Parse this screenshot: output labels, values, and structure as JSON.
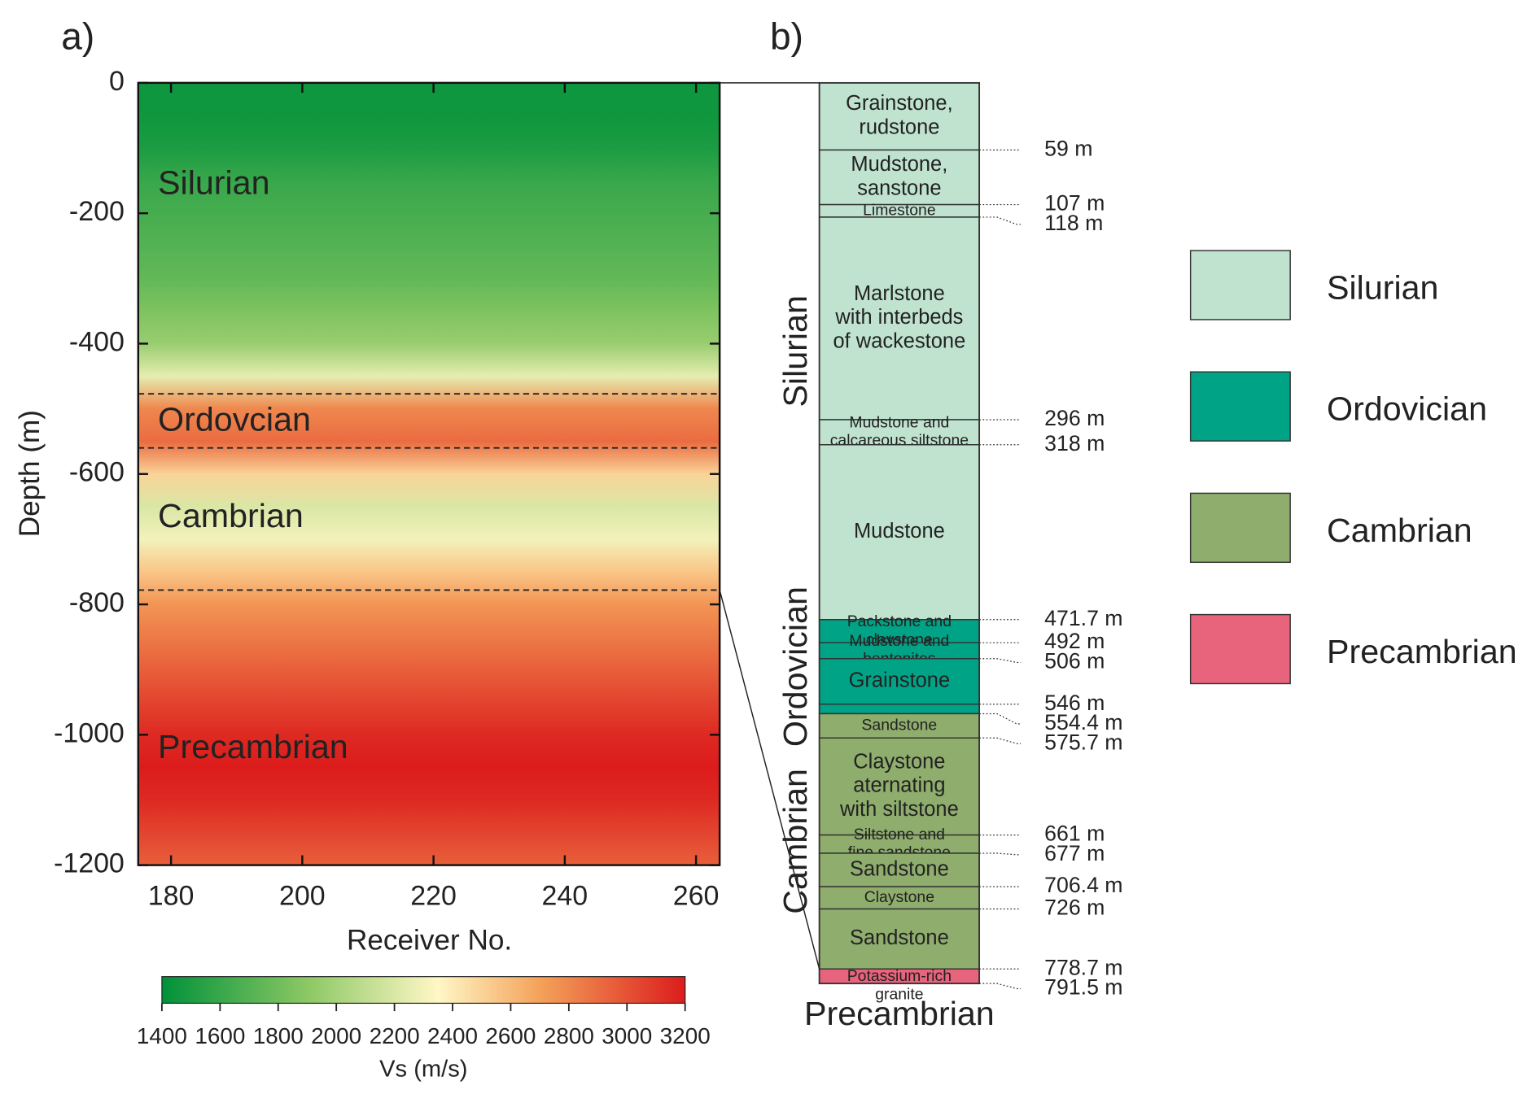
{
  "panel_a": {
    "label": "a)",
    "xlabel": "Receiver No.",
    "ylabel": "Depth (m)",
    "xlim": [
      175,
      263.6
    ],
    "xticks": [
      180,
      200,
      220,
      240,
      260
    ],
    "ylim": [
      0,
      -1200
    ],
    "yticks": [
      0,
      -200,
      -400,
      -600,
      -800,
      -1000,
      -1200
    ],
    "vs_profile": {
      "depth": [
        0,
        -50,
        -100,
        -150,
        -200,
        -250,
        -300,
        -350,
        -400,
        -450,
        -500,
        -550,
        -600,
        -650,
        -700,
        -750,
        -800,
        -850,
        -900,
        -950,
        -1000,
        -1050,
        -1100,
        -1150,
        -1200
      ],
      "vs": [
        1450,
        1450,
        1500,
        1600,
        1650,
        1700,
        1750,
        1850,
        1950,
        2250,
        2800,
        2900,
        2500,
        2200,
        2300,
        2550,
        2750,
        2850,
        2950,
        3050,
        3150,
        3200,
        3150,
        3050,
        2950
      ]
    },
    "formations": [
      {
        "name": "Silurian",
        "depth": -157
      },
      {
        "name": "Ordovcian",
        "depth": -520
      },
      {
        "name": "Cambrian",
        "depth": -668
      },
      {
        "name": "Precambrian",
        "depth": -1022
      }
    ],
    "boundaries": [
      -477,
      -560,
      -778
    ],
    "colorbar": {
      "label": "Vs (m/s)",
      "lim": [
        1400,
        3200
      ],
      "ticks": [
        1400,
        1600,
        1800,
        2000,
        2200,
        2400,
        2600,
        2800,
        3000,
        3200
      ],
      "colors": [
        {
          "value": 1400,
          "color": "#00913a"
        },
        {
          "value": 1900,
          "color": "#8cc864"
        },
        {
          "value": 2350,
          "color": "#fff7c6"
        },
        {
          "value": 2700,
          "color": "#f4a25a"
        },
        {
          "value": 3200,
          "color": "#dc1c1c"
        }
      ]
    }
  },
  "panel_b": {
    "label": "b)",
    "depth_range": [
      0,
      791.5
    ],
    "layers": [
      {
        "top": 0,
        "bottom": 59,
        "period": "Silurian",
        "lines": [
          "Grainstone,",
          "rudstone"
        ]
      },
      {
        "top": 59,
        "bottom": 107,
        "period": "Silurian",
        "lines": [
          "Mudstone,",
          "sanstone"
        ]
      },
      {
        "top": 107,
        "bottom": 118,
        "period": "Silurian",
        "lines": [
          "Limestone"
        ]
      },
      {
        "top": 118,
        "bottom": 296,
        "period": "Silurian",
        "lines": [
          "Marlstone",
          "with interbeds",
          "of wackestone"
        ]
      },
      {
        "top": 296,
        "bottom": 318,
        "period": "Silurian",
        "lines": [
          "Mudstone and",
          "calcareous siltstone"
        ]
      },
      {
        "top": 318,
        "bottom": 471.7,
        "period": "Silurian",
        "lines": [
          "Mudstone"
        ]
      },
      {
        "top": 471.7,
        "bottom": 492,
        "period": "Ordovician",
        "lines": [
          "Packstone and",
          "claystone"
        ]
      },
      {
        "top": 492,
        "bottom": 506,
        "period": "Ordovician",
        "lines": [
          "Mudstone and",
          "bentonites"
        ]
      },
      {
        "top": 506,
        "bottom": 546,
        "period": "Ordovician",
        "lines": [
          "Grainstone"
        ]
      },
      {
        "top": 546,
        "bottom": 554.4,
        "period": "Ordovician",
        "lines": []
      },
      {
        "top": 554.4,
        "bottom": 575.7,
        "period": "Cambrian",
        "lines": [
          "Sandstone"
        ]
      },
      {
        "top": 575.7,
        "bottom": 661,
        "period": "Cambrian",
        "lines": [
          "Claystone",
          "aternating",
          "with siltstone"
        ]
      },
      {
        "top": 661,
        "bottom": 677,
        "period": "Cambrian",
        "lines": [
          "Siltstone and",
          "fine sandstone"
        ]
      },
      {
        "top": 677,
        "bottom": 706.4,
        "period": "Cambrian",
        "lines": [
          "Sandstone"
        ]
      },
      {
        "top": 706.4,
        "bottom": 726,
        "period": "Cambrian",
        "lines": [
          "Claystone"
        ]
      },
      {
        "top": 726,
        "bottom": 778.7,
        "period": "Cambrian",
        "lines": [
          "Sandstone"
        ]
      },
      {
        "top": 778.7,
        "bottom": 791.5,
        "period": "Precambrian",
        "lines": [
          "Potassium-rich",
          "granite"
        ]
      }
    ],
    "depth_labels": [
      {
        "value": 59,
        "label": "59 m"
      },
      {
        "value": 107,
        "label": "107 m"
      },
      {
        "value": 118,
        "label": "118 m"
      },
      {
        "value": 296,
        "label": "296 m"
      },
      {
        "value": 318,
        "label": "318 m"
      },
      {
        "value": 471.7,
        "label": "471.7 m"
      },
      {
        "value": 492,
        "label": "492 m"
      },
      {
        "value": 506,
        "label": "506 m"
      },
      {
        "value": 546,
        "label": "546 m"
      },
      {
        "value": 554.4,
        "label": "554.4 m"
      },
      {
        "value": 575.7,
        "label": "575.7 m"
      },
      {
        "value": 661,
        "label": "661 m"
      },
      {
        "value": 677,
        "label": "677 m"
      },
      {
        "value": 706.4,
        "label": "706.4 m"
      },
      {
        "value": 726,
        "label": "726 m"
      },
      {
        "value": 778.7,
        "label": "778.7 m"
      },
      {
        "value": 791.5,
        "label": "791.5 m"
      }
    ],
    "periods": [
      "Silurian",
      "Ordovician",
      "Cambrian",
      "Precambrian"
    ]
  },
  "legend": [
    {
      "name": "Silurian",
      "color": "#bfe3cf"
    },
    {
      "name": "Ordovician",
      "color": "#00a386"
    },
    {
      "name": "Cambrian",
      "color": "#8fad6d"
    },
    {
      "name": "Precambrian",
      "color": "#e8637c"
    }
  ]
}
